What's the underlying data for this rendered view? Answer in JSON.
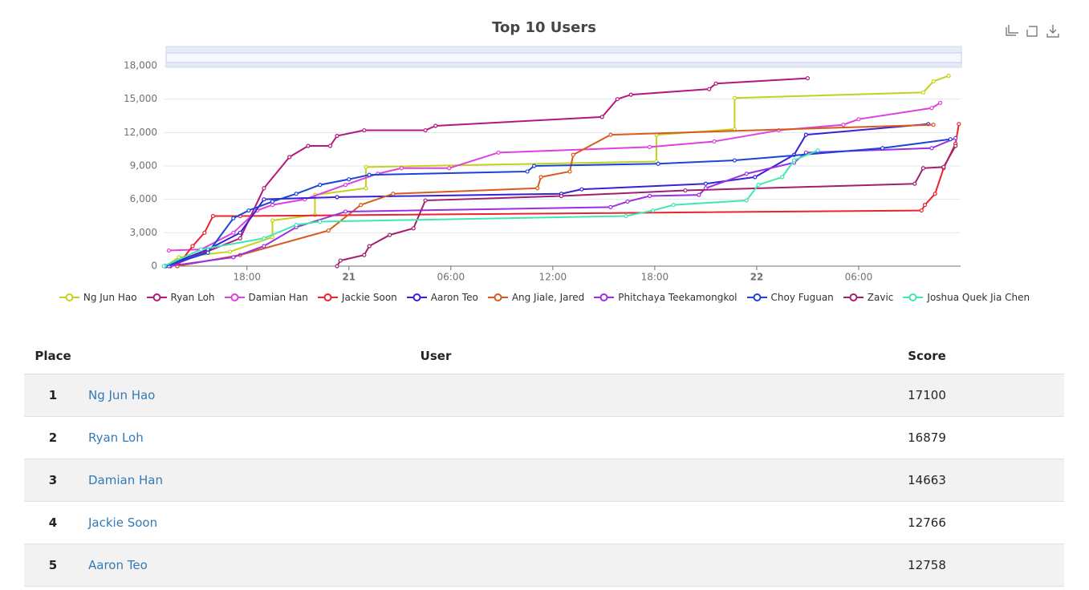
{
  "chart_data": {
    "type": "line",
    "title": "Top 10 Users",
    "xlim": [
      13.1,
      60
    ],
    "ylim": [
      0,
      18000
    ],
    "xticks": [
      {
        "value": 18,
        "label": "18:00"
      },
      {
        "value": 24,
        "label": "21"
      },
      {
        "value": 30,
        "label": "06:00"
      },
      {
        "value": 36,
        "label": "12:00"
      },
      {
        "value": 42,
        "label": "18:00"
      },
      {
        "value": 48,
        "label": "22"
      },
      {
        "value": 54,
        "label": "06:00"
      }
    ],
    "yticks": [
      0,
      {
        "value": 3000,
        "label": "3,000"
      },
      {
        "value": 6000,
        "label": "6,000"
      },
      {
        "value": 9000,
        "label": "9,000"
      },
      {
        "value": 12000,
        "label": "12,000"
      },
      {
        "value": 15000,
        "label": "15,000"
      },
      {
        "value": 18000,
        "label": "18,000"
      }
    ],
    "grid": true,
    "series": [
      {
        "name": "Ng Jun Hao",
        "color": "#c4d31a",
        "x": [
          13.2,
          14,
          17,
          19.5,
          19.5,
          22,
          22,
          25,
          25,
          42.1,
          42.1,
          46.7,
          46.7,
          57.8,
          58.4,
          59.3
        ],
        "values": [
          0,
          800,
          1300,
          2600,
          4100,
          4600,
          6400,
          7000,
          8900,
          9400,
          11800,
          12300,
          15100,
          15600,
          16600,
          17100
        ]
      },
      {
        "name": "Ryan Loh",
        "color": "#b5177d",
        "x": [
          13.5,
          17.6,
          19.0,
          20.5,
          21.6,
          22.9,
          23.3,
          24.9,
          28.5,
          29.1,
          38.9,
          39.8,
          40.6,
          45.2,
          45.6,
          51.0
        ],
        "values": [
          0,
          2500,
          7000,
          9800,
          10800,
          10800,
          11700,
          12200,
          12200,
          12600,
          13400,
          15000,
          15400,
          15900,
          16400,
          16879
        ]
      },
      {
        "name": "Damian Han",
        "color": "#df3ee0",
        "x": [
          13.4,
          15.3,
          17.2,
          18.6,
          19.5,
          21.4,
          23.8,
          25.7,
          27.1,
          29.9,
          32.8,
          41.7,
          45.5,
          49.3,
          53.1,
          54.0,
          58.3,
          58.8
        ],
        "values": [
          1400,
          1500,
          3000,
          5000,
          5500,
          6000,
          7300,
          8300,
          8800,
          8800,
          10200,
          10700,
          11200,
          12200,
          12700,
          13200,
          14200,
          14663
        ]
      },
      {
        "name": "Jackie Soon",
        "color": "#e8242e",
        "x": [
          13.9,
          14.8,
          15.5,
          16.0,
          17.6,
          57.7,
          57.9,
          58.5,
          59.0,
          59.7,
          59.9
        ],
        "values": [
          0,
          1800,
          3000,
          4500,
          4500,
          5000,
          5500,
          6500,
          8800,
          11000,
          12766
        ]
      },
      {
        "name": "Aaron Teo",
        "color": "#3a1fd8",
        "x": [
          13.2,
          15.7,
          17.6,
          19.0,
          23.3,
          36.5,
          37.7,
          45.0,
          47.9,
          50.2,
          50.9,
          58.1
        ],
        "values": [
          0,
          1500,
          3000,
          6000,
          6200,
          6500,
          6900,
          7400,
          8000,
          10000,
          11800,
          12758
        ]
      },
      {
        "name": "Ang Jiale, Jared",
        "color": "#d85a1c",
        "x": [
          13.9,
          17.6,
          22.8,
          24.7,
          26.6,
          35.1,
          35.3,
          37.0,
          37.2,
          39.4,
          58.4
        ],
        "values": [
          0,
          1000,
          3200,
          5500,
          6500,
          7000,
          8000,
          8500,
          10000,
          11800,
          12700
        ]
      },
      {
        "name": "Phitchaya Teekamongkol",
        "color": "#9b2fe0",
        "x": [
          13.4,
          17.2,
          19.0,
          20.9,
          23.8,
          39.4,
          40.4,
          41.7,
          44.6,
          45.0,
          47.4,
          50.2,
          50.9,
          58.3,
          59.7
        ],
        "values": [
          0,
          800,
          1800,
          3500,
          4900,
          5300,
          5800,
          6300,
          6400,
          7000,
          8300,
          9300,
          10200,
          10600,
          11500
        ]
      },
      {
        "name": "Choy Fuguan",
        "color": "#1a44d8",
        "x": [
          13.2,
          15.7,
          17.2,
          18.1,
          19.5,
          20.9,
          22.3,
          24.0,
          25.2,
          34.5,
          34.9,
          42.2,
          46.7,
          55.4,
          59.4
        ],
        "values": [
          0,
          1200,
          4300,
          5000,
          5800,
          6500,
          7300,
          7800,
          8200,
          8500,
          9000,
          9200,
          9500,
          10600,
          11400
        ]
      },
      {
        "name": "Zavic",
        "color": "#a0206e",
        "x": [
          23.3,
          23.5,
          24.9,
          25.2,
          26.4,
          27.8,
          28.5,
          36.5,
          43.8,
          57.3,
          57.8,
          59.0,
          59.7
        ],
        "values": [
          0,
          500,
          1000,
          1800,
          2800,
          3400,
          5900,
          6300,
          6800,
          7400,
          8800,
          8900,
          10800
        ]
      },
      {
        "name": "Joshua Quek Jia Chen",
        "color": "#3ee8b0",
        "x": [
          13.1,
          15.3,
          19.0,
          20.9,
          22.3,
          40.3,
          41.9,
          43.1,
          47.4,
          48.1,
          49.5,
          50.2,
          51.6
        ],
        "values": [
          0,
          1500,
          2500,
          3700,
          4000,
          4500,
          5000,
          5500,
          5900,
          7300,
          8000,
          9500,
          10400
        ]
      }
    ]
  },
  "table": {
    "header": [
      "Place",
      "User",
      "Score"
    ],
    "rows": [
      [
        "1",
        "Ng Jun Hao",
        "17100"
      ],
      [
        "2",
        "Ryan Loh",
        "16879"
      ],
      [
        "3",
        "Damian Han",
        "14663"
      ],
      [
        "4",
        "Jackie Soon",
        "12766"
      ],
      [
        "5",
        "Aaron Teo",
        "12758"
      ]
    ]
  }
}
